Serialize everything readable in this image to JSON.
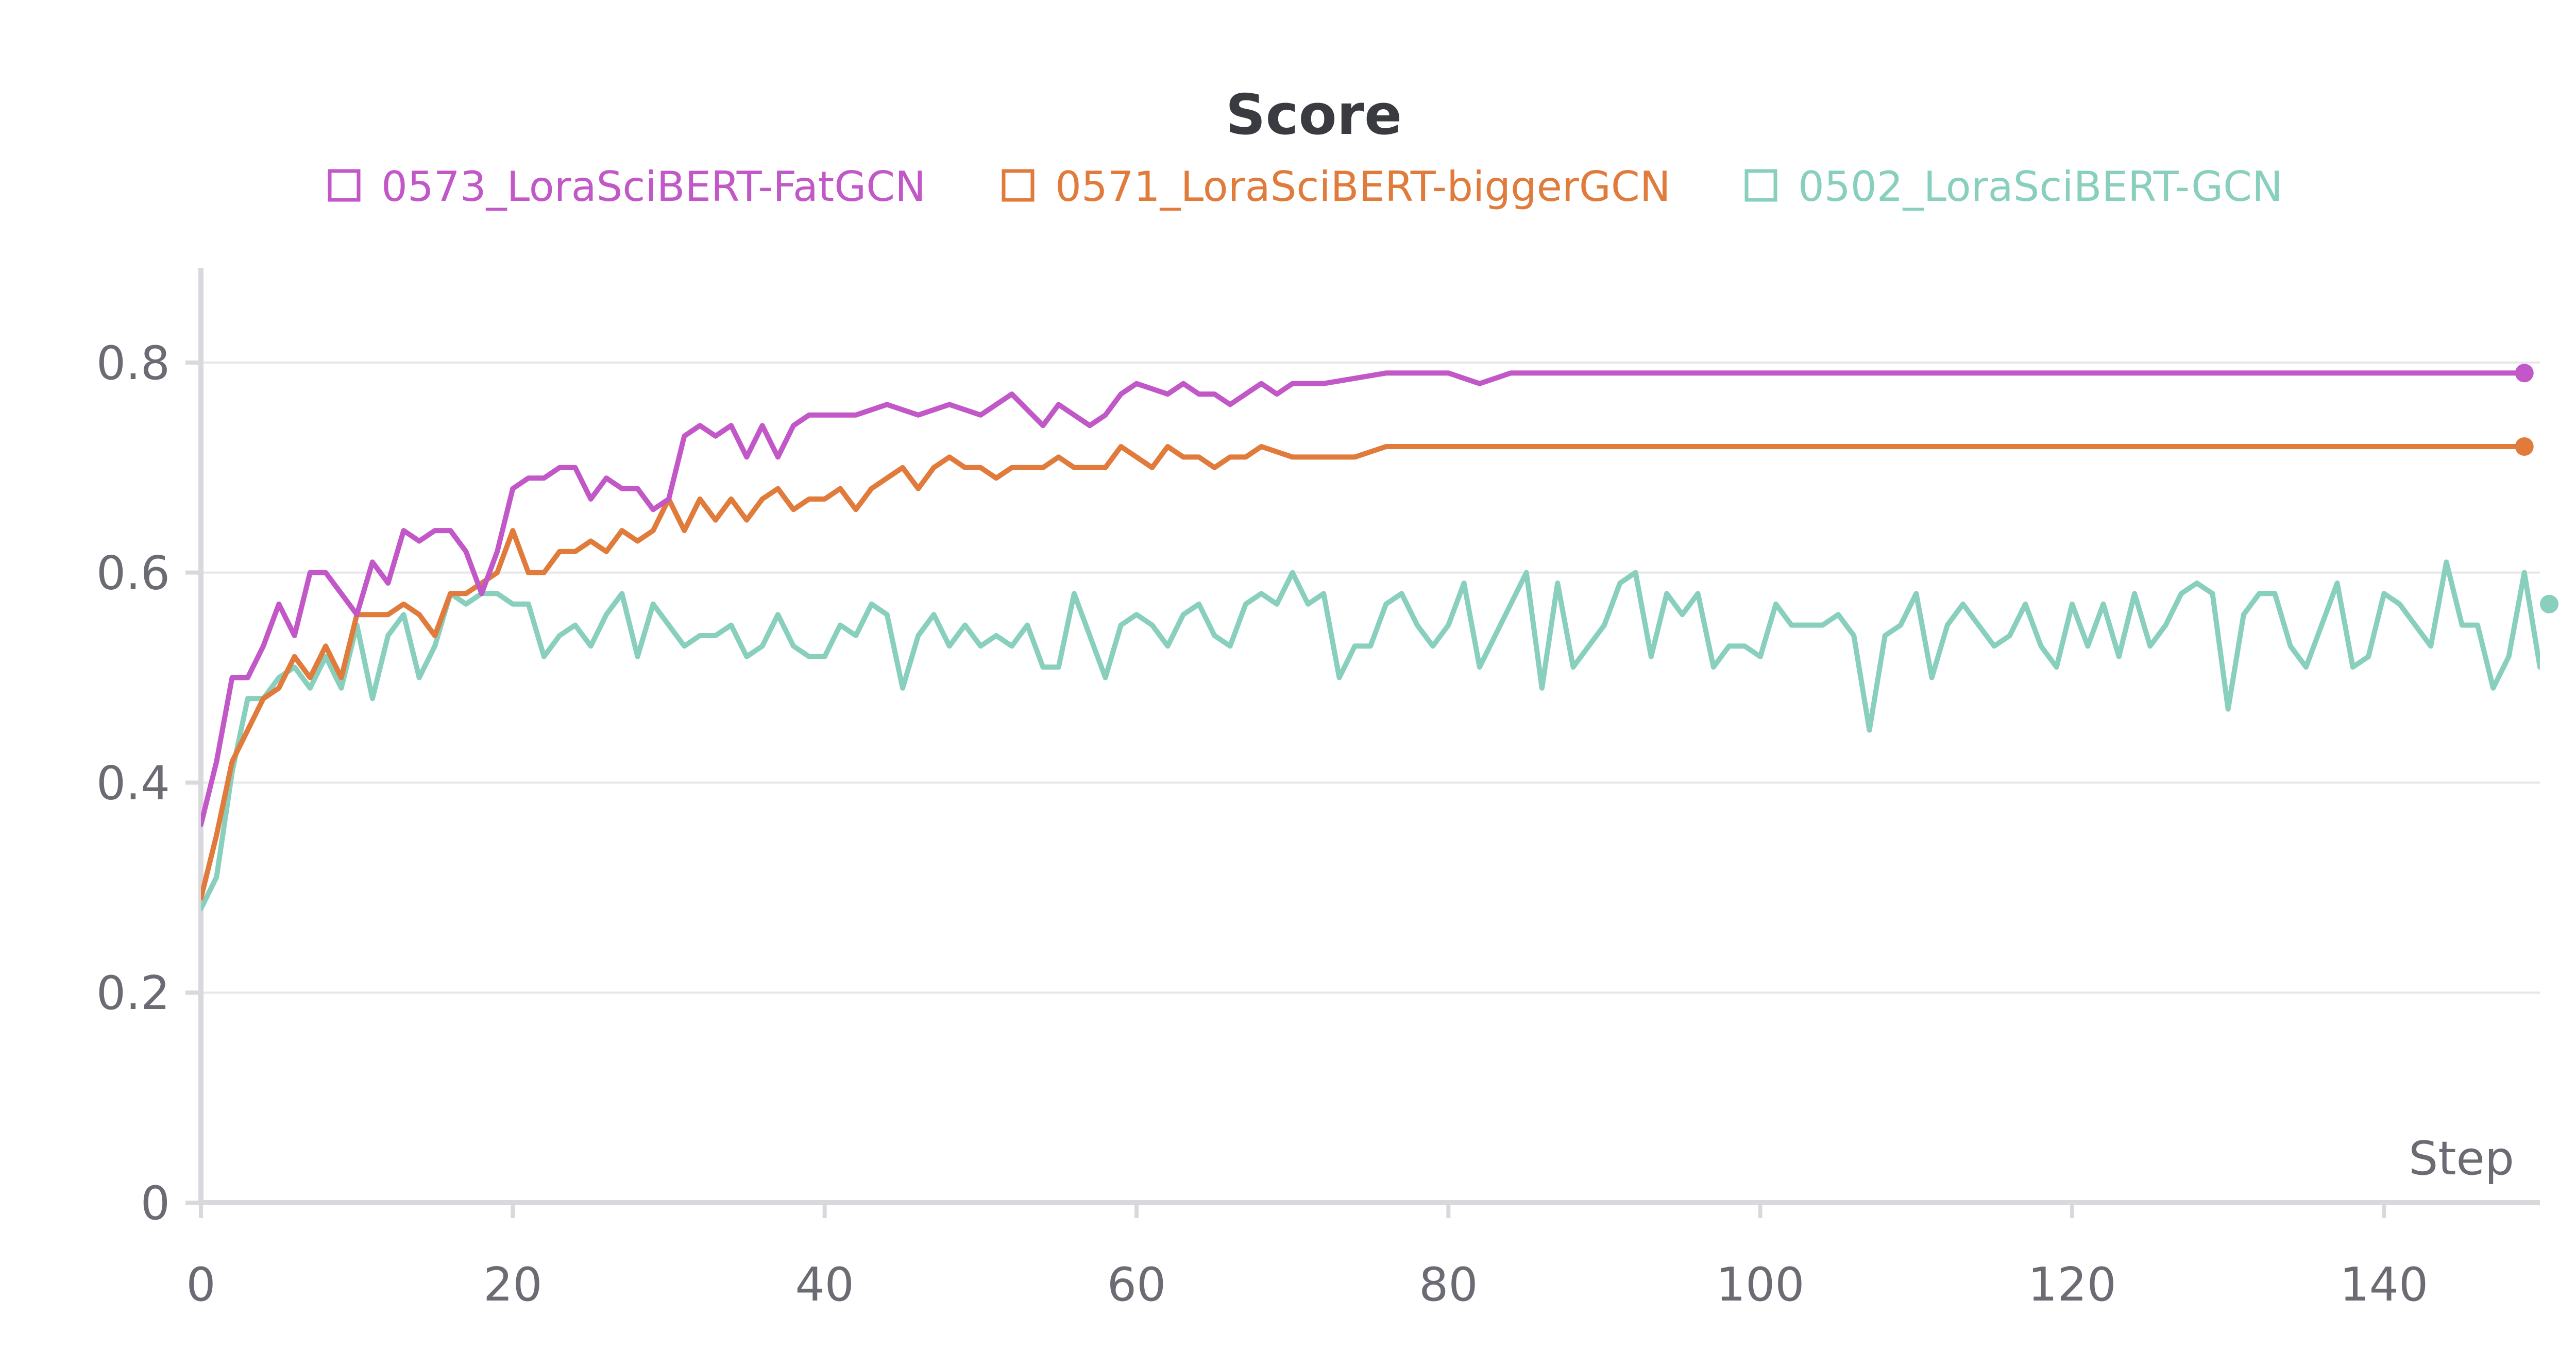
{
  "chart_data": {
    "type": "line",
    "title": "Score",
    "xlabel": "Step",
    "ylabel": "",
    "xlim": [
      0,
      150
    ],
    "ylim": [
      0,
      0.9
    ],
    "xticks": [
      0,
      20,
      40,
      60,
      80,
      100,
      120,
      140
    ],
    "yticks": [
      0,
      0.2,
      0.4,
      0.6,
      0.8
    ],
    "xtick_labels": [
      "0",
      "20",
      "40",
      "60",
      "80",
      "100",
      "120",
      "140"
    ],
    "ytick_labels": [
      "0",
      "0.2",
      "0.4",
      "0.6",
      "0.8"
    ],
    "grid": true,
    "legend_position": "top",
    "series": [
      {
        "name": "0573_LoraSciBERT-FatGCN",
        "color": "#c257c8",
        "end_marker": true,
        "points": [
          [
            0,
            0.36
          ],
          [
            1,
            0.42
          ],
          [
            2,
            0.5
          ],
          [
            3,
            0.5
          ],
          [
            4,
            0.53
          ],
          [
            5,
            0.57
          ],
          [
            6,
            0.54
          ],
          [
            7,
            0.6
          ],
          [
            8,
            0.6
          ],
          [
            9,
            0.58
          ],
          [
            10,
            0.56
          ],
          [
            11,
            0.61
          ],
          [
            12,
            0.59
          ],
          [
            13,
            0.64
          ],
          [
            14,
            0.63
          ],
          [
            15,
            0.64
          ],
          [
            16,
            0.64
          ],
          [
            17,
            0.62
          ],
          [
            18,
            0.58
          ],
          [
            19,
            0.62
          ],
          [
            20,
            0.68
          ],
          [
            21,
            0.69
          ],
          [
            22,
            0.69
          ],
          [
            23,
            0.7
          ],
          [
            24,
            0.7
          ],
          [
            25,
            0.67
          ],
          [
            26,
            0.69
          ],
          [
            27,
            0.68
          ],
          [
            28,
            0.68
          ],
          [
            29,
            0.66
          ],
          [
            30,
            0.67
          ],
          [
            31,
            0.73
          ],
          [
            32,
            0.74
          ],
          [
            33,
            0.73
          ],
          [
            34,
            0.74
          ],
          [
            35,
            0.71
          ],
          [
            36,
            0.74
          ],
          [
            37,
            0.71
          ],
          [
            38,
            0.74
          ],
          [
            39,
            0.75
          ],
          [
            40,
            0.75
          ],
          [
            42,
            0.75
          ],
          [
            44,
            0.76
          ],
          [
            46,
            0.75
          ],
          [
            48,
            0.76
          ],
          [
            50,
            0.75
          ],
          [
            52,
            0.77
          ],
          [
            54,
            0.74
          ],
          [
            55,
            0.76
          ],
          [
            57,
            0.74
          ],
          [
            58,
            0.75
          ],
          [
            59,
            0.77
          ],
          [
            60,
            0.78
          ],
          [
            62,
            0.77
          ],
          [
            63,
            0.78
          ],
          [
            64,
            0.77
          ],
          [
            65,
            0.77
          ],
          [
            66,
            0.76
          ],
          [
            68,
            0.78
          ],
          [
            69,
            0.77
          ],
          [
            70,
            0.78
          ],
          [
            72,
            0.78
          ],
          [
            76,
            0.79
          ],
          [
            78,
            0.79
          ],
          [
            80,
            0.79
          ],
          [
            82,
            0.78
          ],
          [
            84,
            0.79
          ],
          [
            88,
            0.79
          ],
          [
            92,
            0.79
          ],
          [
            96,
            0.79
          ],
          [
            100,
            0.79
          ],
          [
            104,
            0.79
          ],
          [
            110,
            0.79
          ],
          [
            116,
            0.79
          ],
          [
            120,
            0.79
          ],
          [
            126,
            0.79
          ],
          [
            130,
            0.79
          ],
          [
            136,
            0.79
          ],
          [
            140,
            0.79
          ],
          [
            145,
            0.79
          ],
          [
            149,
            0.79
          ]
        ]
      },
      {
        "name": "0571_LoraSciBERT-biggerGCN",
        "color": "#e07b3c",
        "end_marker": true,
        "points": [
          [
            0,
            0.29
          ],
          [
            1,
            0.35
          ],
          [
            2,
            0.42
          ],
          [
            3,
            0.45
          ],
          [
            4,
            0.48
          ],
          [
            5,
            0.49
          ],
          [
            6,
            0.52
          ],
          [
            7,
            0.5
          ],
          [
            8,
            0.53
          ],
          [
            9,
            0.5
          ],
          [
            10,
            0.56
          ],
          [
            11,
            0.56
          ],
          [
            12,
            0.56
          ],
          [
            13,
            0.57
          ],
          [
            14,
            0.56
          ],
          [
            15,
            0.54
          ],
          [
            16,
            0.58
          ],
          [
            17,
            0.58
          ],
          [
            18,
            0.59
          ],
          [
            19,
            0.6
          ],
          [
            20,
            0.64
          ],
          [
            21,
            0.6
          ],
          [
            22,
            0.6
          ],
          [
            23,
            0.62
          ],
          [
            24,
            0.62
          ],
          [
            25,
            0.63
          ],
          [
            26,
            0.62
          ],
          [
            27,
            0.64
          ],
          [
            28,
            0.63
          ],
          [
            29,
            0.64
          ],
          [
            30,
            0.67
          ],
          [
            31,
            0.64
          ],
          [
            32,
            0.67
          ],
          [
            33,
            0.65
          ],
          [
            34,
            0.67
          ],
          [
            35,
            0.65
          ],
          [
            36,
            0.67
          ],
          [
            37,
            0.68
          ],
          [
            38,
            0.66
          ],
          [
            39,
            0.67
          ],
          [
            40,
            0.67
          ],
          [
            41,
            0.68
          ],
          [
            42,
            0.66
          ],
          [
            43,
            0.68
          ],
          [
            44,
            0.69
          ],
          [
            45,
            0.7
          ],
          [
            46,
            0.68
          ],
          [
            47,
            0.7
          ],
          [
            48,
            0.71
          ],
          [
            49,
            0.7
          ],
          [
            50,
            0.7
          ],
          [
            51,
            0.69
          ],
          [
            52,
            0.7
          ],
          [
            53,
            0.7
          ],
          [
            54,
            0.7
          ],
          [
            55,
            0.71
          ],
          [
            56,
            0.7
          ],
          [
            57,
            0.7
          ],
          [
            58,
            0.7
          ],
          [
            59,
            0.72
          ],
          [
            60,
            0.71
          ],
          [
            61,
            0.7
          ],
          [
            62,
            0.72
          ],
          [
            63,
            0.71
          ],
          [
            64,
            0.71
          ],
          [
            65,
            0.7
          ],
          [
            66,
            0.71
          ],
          [
            67,
            0.71
          ],
          [
            68,
            0.72
          ],
          [
            70,
            0.71
          ],
          [
            72,
            0.71
          ],
          [
            74,
            0.71
          ],
          [
            76,
            0.72
          ],
          [
            78,
            0.72
          ],
          [
            80,
            0.72
          ],
          [
            84,
            0.72
          ],
          [
            88,
            0.72
          ],
          [
            92,
            0.72
          ],
          [
            96,
            0.72
          ],
          [
            100,
            0.72
          ],
          [
            106,
            0.72
          ],
          [
            112,
            0.72
          ],
          [
            118,
            0.72
          ],
          [
            124,
            0.72
          ],
          [
            130,
            0.72
          ],
          [
            136,
            0.72
          ],
          [
            142,
            0.72
          ],
          [
            149,
            0.72
          ]
        ]
      },
      {
        "name": "0502_LoraSciBERT-GCN",
        "color": "#88cfbe",
        "end_marker": true,
        "points": [
          [
            0,
            0.28
          ],
          [
            1,
            0.31
          ],
          [
            2,
            0.41
          ],
          [
            3,
            0.48
          ],
          [
            4,
            0.48
          ],
          [
            5,
            0.5
          ],
          [
            6,
            0.51
          ],
          [
            7,
            0.49
          ],
          [
            8,
            0.52
          ],
          [
            9,
            0.49
          ],
          [
            10,
            0.55
          ],
          [
            11,
            0.48
          ],
          [
            12,
            0.54
          ],
          [
            13,
            0.56
          ],
          [
            14,
            0.5
          ],
          [
            15,
            0.53
          ],
          [
            16,
            0.58
          ],
          [
            17,
            0.57
          ],
          [
            18,
            0.58
          ],
          [
            19,
            0.58
          ],
          [
            20,
            0.57
          ],
          [
            21,
            0.57
          ],
          [
            22,
            0.52
          ],
          [
            23,
            0.54
          ],
          [
            24,
            0.55
          ],
          [
            25,
            0.53
          ],
          [
            26,
            0.56
          ],
          [
            27,
            0.58
          ],
          [
            28,
            0.52
          ],
          [
            29,
            0.57
          ],
          [
            30,
            0.55
          ],
          [
            31,
            0.53
          ],
          [
            32,
            0.54
          ],
          [
            33,
            0.54
          ],
          [
            34,
            0.55
          ],
          [
            35,
            0.52
          ],
          [
            36,
            0.53
          ],
          [
            37,
            0.56
          ],
          [
            38,
            0.53
          ],
          [
            39,
            0.52
          ],
          [
            40,
            0.52
          ],
          [
            41,
            0.55
          ],
          [
            42,
            0.54
          ],
          [
            43,
            0.57
          ],
          [
            44,
            0.56
          ],
          [
            45,
            0.49
          ],
          [
            46,
            0.54
          ],
          [
            47,
            0.56
          ],
          [
            48,
            0.53
          ],
          [
            49,
            0.55
          ],
          [
            50,
            0.53
          ],
          [
            51,
            0.54
          ],
          [
            52,
            0.53
          ],
          [
            53,
            0.55
          ],
          [
            54,
            0.51
          ],
          [
            55,
            0.51
          ],
          [
            56,
            0.58
          ],
          [
            57,
            0.54
          ],
          [
            58,
            0.5
          ],
          [
            59,
            0.55
          ],
          [
            60,
            0.56
          ],
          [
            61,
            0.55
          ],
          [
            62,
            0.53
          ],
          [
            63,
            0.56
          ],
          [
            64,
            0.57
          ],
          [
            65,
            0.54
          ],
          [
            66,
            0.53
          ],
          [
            67,
            0.57
          ],
          [
            68,
            0.58
          ],
          [
            69,
            0.57
          ],
          [
            70,
            0.6
          ],
          [
            71,
            0.57
          ],
          [
            72,
            0.58
          ],
          [
            73,
            0.5
          ],
          [
            74,
            0.53
          ],
          [
            75,
            0.53
          ],
          [
            76,
            0.57
          ],
          [
            77,
            0.58
          ],
          [
            78,
            0.55
          ],
          [
            79,
            0.53
          ],
          [
            80,
            0.55
          ],
          [
            81,
            0.59
          ],
          [
            82,
            0.51
          ],
          [
            83,
            0.54
          ],
          [
            84,
            0.57
          ],
          [
            85,
            0.6
          ],
          [
            86,
            0.49
          ],
          [
            87,
            0.59
          ],
          [
            88,
            0.51
          ],
          [
            89,
            0.53
          ],
          [
            90,
            0.55
          ],
          [
            91,
            0.59
          ],
          [
            92,
            0.6
          ],
          [
            93,
            0.52
          ],
          [
            94,
            0.58
          ],
          [
            95,
            0.56
          ],
          [
            96,
            0.58
          ],
          [
            97,
            0.51
          ],
          [
            98,
            0.53
          ],
          [
            99,
            0.53
          ],
          [
            100,
            0.52
          ],
          [
            101,
            0.57
          ],
          [
            102,
            0.55
          ],
          [
            103,
            0.55
          ],
          [
            104,
            0.55
          ],
          [
            105,
            0.56
          ],
          [
            106,
            0.54
          ],
          [
            107,
            0.45
          ],
          [
            108,
            0.54
          ],
          [
            109,
            0.55
          ],
          [
            110,
            0.58
          ],
          [
            111,
            0.5
          ],
          [
            112,
            0.55
          ],
          [
            113,
            0.57
          ],
          [
            114,
            0.55
          ],
          [
            115,
            0.53
          ],
          [
            116,
            0.54
          ],
          [
            117,
            0.57
          ],
          [
            118,
            0.53
          ],
          [
            119,
            0.51
          ],
          [
            120,
            0.57
          ],
          [
            121,
            0.53
          ],
          [
            122,
            0.57
          ],
          [
            123,
            0.52
          ],
          [
            124,
            0.58
          ],
          [
            125,
            0.53
          ],
          [
            126,
            0.55
          ],
          [
            127,
            0.58
          ],
          [
            128,
            0.59
          ],
          [
            129,
            0.58
          ],
          [
            130,
            0.47
          ],
          [
            131,
            0.56
          ],
          [
            132,
            0.58
          ],
          [
            133,
            0.58
          ],
          [
            134,
            0.53
          ],
          [
            135,
            0.51
          ],
          [
            136,
            0.55
          ],
          [
            137,
            0.59
          ],
          [
            138,
            0.51
          ],
          [
            139,
            0.52
          ],
          [
            140,
            0.58
          ],
          [
            141,
            0.57
          ],
          [
            142,
            0.55
          ],
          [
            143,
            0.53
          ],
          [
            144,
            0.61
          ],
          [
            145,
            0.55
          ],
          [
            146,
            0.55
          ],
          [
            147,
            0.49
          ],
          [
            148,
            0.52
          ],
          [
            149,
            0.6
          ],
          [
            150,
            0.51
          ],
          [
            151,
            0.57
          ]
        ]
      }
    ]
  }
}
